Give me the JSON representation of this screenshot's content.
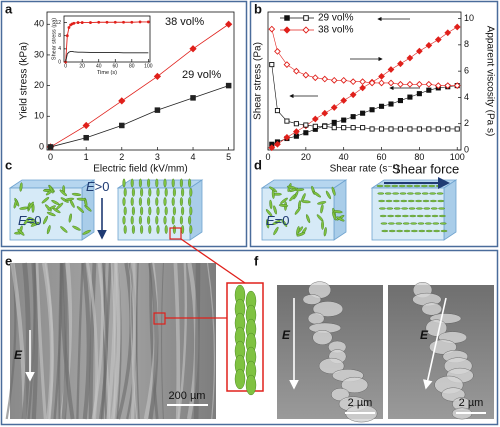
{
  "panel_labels": [
    "a",
    "b",
    "c",
    "d",
    "e",
    "f"
  ],
  "chart_data": [
    {
      "type": "line",
      "xlabel": "Electric field (kV/mm)",
      "ylabel": "Yield stress  (kPa)",
      "x": [
        0,
        1,
        2,
        3,
        4,
        5
      ],
      "xlim": [
        -0.1,
        5.15
      ],
      "xticks": [
        0,
        1,
        2,
        3,
        4,
        5
      ],
      "ylim": [
        -1,
        44
      ],
      "yticks": [
        0,
        10,
        20,
        30,
        40
      ],
      "series": [
        {
          "name": "38 vol%",
          "color": "#e0201b",
          "marker": "diamond",
          "filled": true,
          "values": [
            0,
            7,
            15,
            23,
            32,
            40
          ]
        },
        {
          "name": "29 vol%",
          "color": "#222222",
          "marker": "square",
          "filled": true,
          "values": [
            0,
            3,
            7,
            12,
            16,
            20
          ]
        }
      ]
    },
    {
      "type": "line",
      "xlabel": "Time (s)",
      "ylabel": "Shear stress (pa)",
      "x": [
        0,
        2,
        4,
        6,
        8,
        10,
        15,
        20,
        30,
        40,
        50,
        60,
        70,
        80,
        90,
        100
      ],
      "xlim": [
        -2,
        102
      ],
      "xticks": [
        0,
        20,
        40,
        60,
        80,
        100
      ],
      "ylim": [
        0,
        14
      ],
      "yticks": [
        0,
        4,
        8,
        12
      ],
      "series": [
        {
          "color": "#e0201b",
          "marker": "dot",
          "filled": true,
          "values": [
            0,
            8,
            10.5,
            11.3,
            11.6,
            11.8,
            12,
            12,
            12,
            12.1,
            12.1,
            12.1,
            12.1,
            12.1,
            12.2,
            12.2
          ]
        },
        {
          "color": "#222222",
          "marker": "none",
          "filled": true,
          "values": [
            0,
            2.5,
            3,
            3.2,
            3.2,
            3.1,
            3,
            3,
            2.9,
            2.9,
            2.9,
            2.9,
            2.8,
            2.8,
            2.8,
            2.8
          ]
        }
      ]
    },
    {
      "type": "line",
      "xlabel": "Shear rate (s⁻¹)",
      "ylabel": "Shear stress (Pa)",
      "y2label": "Apparent viscosity (Pa s)",
      "x": [
        2,
        5,
        10,
        15,
        20,
        25,
        30,
        35,
        40,
        45,
        50,
        55,
        60,
        65,
        70,
        75,
        80,
        85,
        90,
        95,
        100
      ],
      "xlim": [
        0,
        102
      ],
      "xticks": [
        0,
        20,
        40,
        60,
        80,
        100
      ],
      "ylim": [
        0,
        12
      ],
      "yticks": [
        0,
        2,
        4,
        6,
        8,
        10,
        12
      ],
      "y2lim": [
        0,
        10.5
      ],
      "y2ticks": [
        0,
        2,
        4,
        6,
        8,
        10
      ],
      "series": [
        {
          "name": "29 vol%",
          "color": "#111111",
          "marker": "square",
          "filled": true,
          "values": [
            0.5,
            0.7,
            1.0,
            1.2,
            1.5,
            1.8,
            2.1,
            2.4,
            2.6,
            2.9,
            3.2,
            3.5,
            3.8,
            4.0,
            4.3,
            4.6,
            4.9,
            5.2,
            5.4,
            5.5,
            5.6
          ]
        },
        {
          "name": "38 vol%",
          "color": "#e0201b",
          "marker": "diamond",
          "filled": true,
          "values": [
            0.2,
            0.5,
            1.1,
            1.6,
            2.1,
            2.7,
            3.2,
            3.7,
            4.3,
            4.8,
            5.4,
            5.9,
            6.4,
            7.0,
            7.5,
            8.0,
            8.6,
            9.1,
            9.6,
            10.2,
            10.7
          ]
        },
        {
          "color": "#111111",
          "marker": "square",
          "filled": false,
          "axis": "y2",
          "values": [
            6.5,
            3.0,
            2.2,
            2.0,
            1.9,
            1.8,
            1.8,
            1.7,
            1.7,
            1.7,
            1.7,
            1.6,
            1.6,
            1.6,
            1.6,
            1.6,
            1.6,
            1.6,
            1.6,
            1.6,
            1.6
          ]
        },
        {
          "color": "#e0201b",
          "marker": "diamond",
          "filled": false,
          "axis": "y2",
          "values": [
            9.2,
            7.5,
            6.5,
            6.0,
            5.7,
            5.5,
            5.4,
            5.3,
            5.3,
            5.2,
            5.2,
            5.1,
            5.1,
            5.1,
            5.0,
            5.0,
            5.0,
            5.0,
            4.9,
            4.9,
            4.9
          ]
        }
      ]
    }
  ],
  "diagram_c": {
    "left_label": {
      "var": "E",
      "rest": "=0"
    },
    "right_label": {
      "var": "E",
      "rest": ">0"
    }
  },
  "diagram_d": {
    "left_label": {
      "var": "E",
      "rest": "=0"
    },
    "arrow_label": "Shear force"
  },
  "micrograph_e": {
    "field_label": "E",
    "scale_bar": "200 µm"
  },
  "micrograph_f": [
    {
      "field_label": "E",
      "scale_bar": "2 µm"
    },
    {
      "field_label": "E",
      "scale_bar": "2 µm"
    }
  ]
}
